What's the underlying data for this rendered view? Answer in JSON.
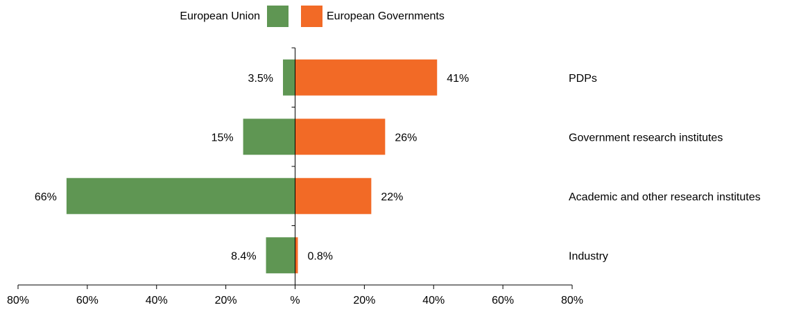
{
  "chart_data": {
    "type": "bar",
    "orientation": "horizontal-diverging",
    "categories": [
      "PDPs",
      "Government research institutes",
      "Academic and other research institutes",
      "Industry"
    ],
    "series": [
      {
        "name": "European Union",
        "values": [
          3.5,
          15,
          66,
          8.4
        ],
        "labels": [
          "3.5%",
          "15%",
          "66%",
          "8.4%"
        ],
        "color": "#5f9653",
        "side": "left"
      },
      {
        "name": "European Governments",
        "values": [
          41,
          26,
          22,
          0.8
        ],
        "labels": [
          "41%",
          "26%",
          "22%",
          "0.8%"
        ],
        "color": "#f26a26",
        "side": "right"
      }
    ],
    "xlim": [
      -80,
      80
    ],
    "x_ticks": [
      -80,
      -60,
      -40,
      -20,
      0,
      20,
      40,
      60,
      80
    ],
    "x_tick_labels": [
      "80%",
      "60%",
      "40%",
      "20%",
      "%",
      "20%",
      "40%",
      "60%",
      "80%"
    ],
    "title": "",
    "xlabel": "",
    "ylabel": "",
    "grid": false,
    "legend_position": "top-center"
  }
}
